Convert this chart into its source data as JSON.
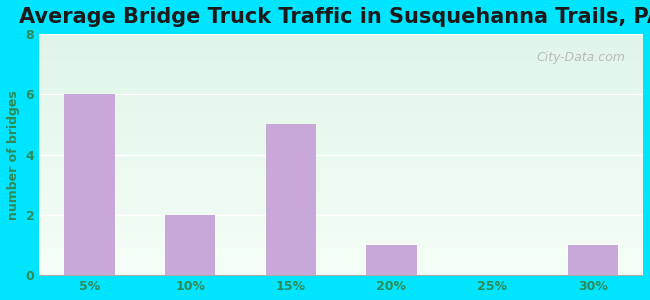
{
  "title": "Average Bridge Truck Traffic in Susquehanna Trails, PA",
  "categories": [
    "5%",
    "10%",
    "15%",
    "20%",
    "25%",
    "30%"
  ],
  "values": [
    6,
    2,
    5,
    1,
    0,
    1
  ],
  "bar_color": "#c8a8d8",
  "ylabel": "number of bridges",
  "ylim": [
    0,
    8
  ],
  "yticks": [
    0,
    2,
    4,
    6,
    8
  ],
  "title_fontsize": 15,
  "axis_label_color": "#2e8b57",
  "tick_label_color": "#2e8b57",
  "bg_outer_color": "#00e5ff",
  "color_top": "#e0f5e8",
  "color_bottom": "#f5fef6",
  "watermark": "City-Data.com"
}
